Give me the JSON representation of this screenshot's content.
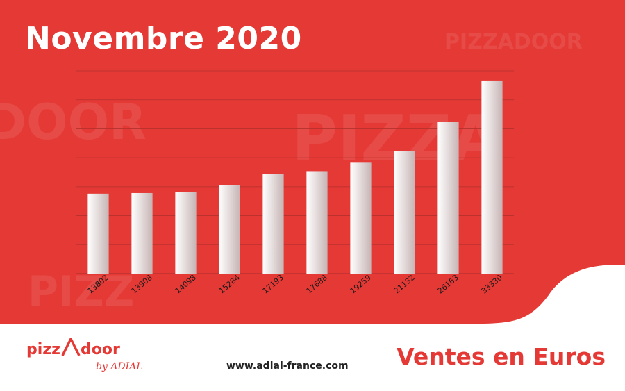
{
  "page": {
    "title": "Novembre 2020",
    "subtitle": "Ventes en Euros",
    "website": "www.adial-france.com"
  },
  "brand": {
    "logo_text": "PIZZADOOR",
    "logo_tagline": "by ADIAL"
  },
  "colors": {
    "background_red": "#e53935",
    "text_white": "#ffffff",
    "accent_red": "#e53935",
    "bar_start": "#ffffff",
    "bar_end": "#c7b4b4"
  },
  "chart_data": {
    "type": "bar",
    "title": "Novembre 2020",
    "ylabel": "",
    "xlabel": "",
    "categories": [
      "13802",
      "13908",
      "14098",
      "15284",
      "17193",
      "17688",
      "19259",
      "21132",
      "26163",
      "33330"
    ],
    "values": [
      13802,
      13908,
      14098,
      15284,
      17193,
      17688,
      19259,
      21132,
      26163,
      33330
    ],
    "ylim": [
      0,
      35000
    ],
    "grid": true,
    "legend": "none"
  }
}
